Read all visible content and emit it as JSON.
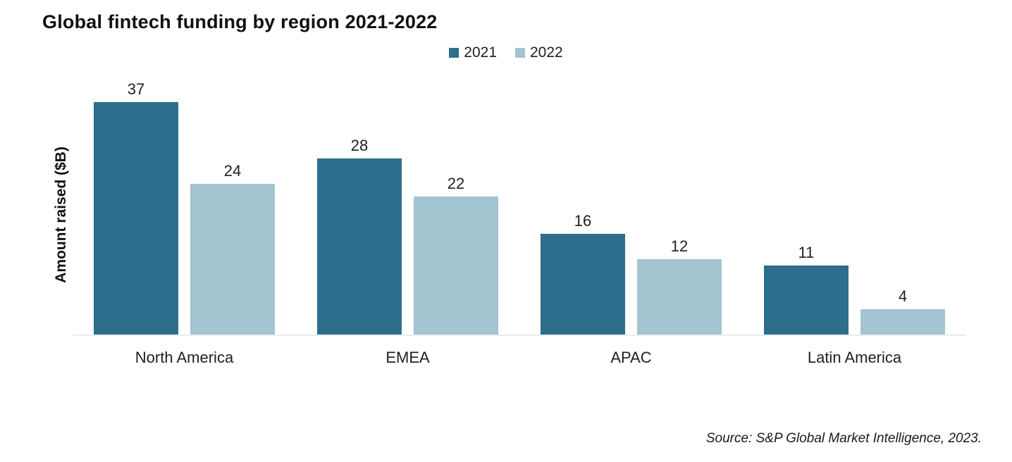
{
  "title": "Global fintech funding by region 2021-2022",
  "ylabel": "Amount raised ($B)",
  "source": "Source: S&P Global Market Intelligence, 2023.",
  "colors": {
    "series_2021": "#2d6e8c",
    "series_2022": "#a3c4d1",
    "axis_line": "#ececec",
    "text": "#1f1f1f"
  },
  "chart_data": {
    "type": "bar",
    "title": "Global fintech funding by region 2021-2022",
    "categories": [
      "North America",
      "EMEA",
      "APAC",
      "Latin America"
    ],
    "series": [
      {
        "name": "2021",
        "color": "#2d6e8c",
        "values": [
          37,
          28,
          16,
          11
        ]
      },
      {
        "name": "2022",
        "color": "#a3c4d1",
        "values": [
          24,
          22,
          12,
          4
        ]
      }
    ],
    "xlabel": "",
    "ylabel": "Amount raised ($B)",
    "ylim": [
      0,
      40
    ],
    "grid": false,
    "legend_position": "top-center",
    "data_labels": true,
    "source": "Source: S&P Global Market Intelligence, 2023."
  }
}
